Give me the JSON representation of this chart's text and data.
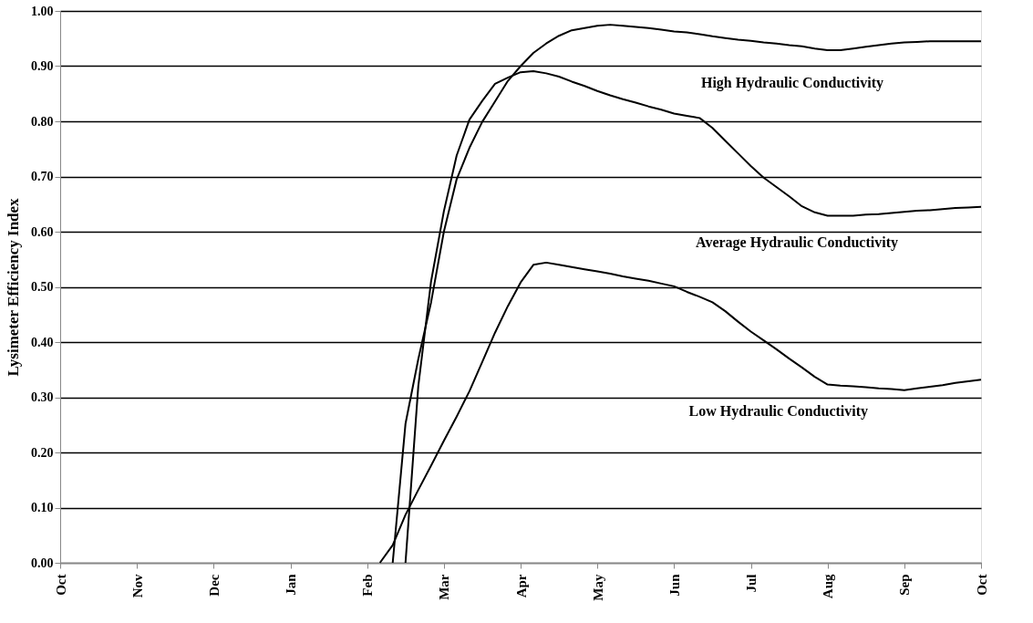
{
  "chart_data": {
    "type": "line",
    "ylabel": "Lysimeter Efficiency Index",
    "categories": [
      "Oct",
      null,
      null,
      null,
      null,
      null,
      "Nov",
      null,
      null,
      null,
      null,
      null,
      "Dec",
      null,
      null,
      null,
      null,
      null,
      "Jan",
      null,
      null,
      null,
      null,
      null,
      "Feb",
      null,
      null,
      null,
      null,
      null,
      "Mar",
      null,
      null,
      null,
      null,
      null,
      "Apr",
      null,
      null,
      null,
      null,
      null,
      "May",
      null,
      null,
      null,
      null,
      null,
      "Jun",
      null,
      null,
      null,
      null,
      null,
      "Jul",
      null,
      null,
      null,
      null,
      null,
      "Aug",
      null,
      null,
      null,
      null,
      null,
      "Sep",
      null,
      null,
      null,
      null,
      null,
      "Oct"
    ],
    "ylim": [
      0,
      1
    ],
    "yticks": [
      {
        "value": 0,
        "label": "0.00"
      },
      {
        "value": 0.1,
        "label": "0.10"
      },
      {
        "value": 0.2,
        "label": "0.20"
      },
      {
        "value": 0.3,
        "label": "0.30"
      },
      {
        "value": 0.4,
        "label": "0.40"
      },
      {
        "value": 0.5,
        "label": "0.50"
      },
      {
        "value": 0.6,
        "label": "0.60"
      },
      {
        "value": 0.7,
        "label": "0.70"
      },
      {
        "value": 0.8,
        "label": "0.80"
      },
      {
        "value": 0.9,
        "label": "0.90"
      },
      {
        "value": 1,
        "label": "1.00"
      }
    ],
    "grid": "y",
    "legend": false,
    "marker": "none",
    "line_style": "solid",
    "series": [
      {
        "name": "High Hydraulic Conductivity",
        "color": "#000000",
        "values": [
          null,
          null,
          null,
          null,
          null,
          null,
          null,
          null,
          null,
          null,
          null,
          null,
          null,
          null,
          null,
          null,
          null,
          null,
          null,
          null,
          null,
          null,
          null,
          null,
          null,
          null,
          0,
          0.252,
          0.369,
          0.472,
          0.6,
          0.695,
          0.752,
          0.799,
          0.836,
          0.873,
          0.9,
          0.924,
          0.941,
          0.955,
          0.965,
          0.969,
          0.973,
          0.975,
          0.973,
          0.971,
          0.969,
          0.966,
          0.963,
          0.961,
          0.958,
          0.954,
          0.951,
          0.948,
          0.946,
          0.943,
          0.941,
          0.938,
          0.936,
          0.932,
          0.929,
          0.929,
          0.932,
          0.935,
          0.938,
          0.941,
          0.943,
          0.944,
          0.945,
          0.945,
          0.945,
          0.945,
          0.945
        ]
      },
      {
        "name": "Average Hydraulic Conductivity",
        "color": "#000000",
        "values": [
          null,
          null,
          null,
          null,
          null,
          null,
          null,
          null,
          null,
          null,
          null,
          null,
          null,
          null,
          null,
          null,
          null,
          null,
          null,
          null,
          null,
          null,
          null,
          null,
          null,
          null,
          null,
          0,
          0.32,
          0.51,
          0.637,
          0.738,
          0.803,
          0.837,
          0.868,
          0.879,
          0.889,
          0.891,
          0.887,
          0.881,
          0.872,
          0.864,
          0.855,
          0.847,
          0.84,
          0.834,
          0.827,
          0.821,
          0.814,
          0.81,
          0.806,
          0.788,
          0.765,
          0.742,
          0.719,
          0.698,
          0.681,
          0.664,
          0.646,
          0.635,
          0.629,
          0.629,
          0.629,
          0.631,
          0.632,
          0.634,
          0.636,
          0.638,
          0.639,
          0.641,
          0.643,
          0.644,
          0.645
        ]
      },
      {
        "name": "Low Hydraulic Conductivity",
        "color": "#000000",
        "values": [
          null,
          null,
          null,
          null,
          null,
          null,
          null,
          null,
          null,
          null,
          null,
          null,
          null,
          null,
          null,
          null,
          null,
          null,
          null,
          null,
          null,
          null,
          null,
          null,
          null,
          0,
          0.032,
          0.087,
          0.132,
          0.176,
          0.221,
          0.265,
          0.311,
          0.364,
          0.417,
          0.465,
          0.508,
          0.54,
          0.544,
          0.54,
          0.536,
          0.532,
          0.528,
          0.524,
          0.519,
          0.515,
          0.511,
          0.506,
          0.501,
          0.491,
          0.482,
          0.472,
          0.456,
          0.437,
          0.419,
          0.403,
          0.387,
          0.37,
          0.354,
          0.337,
          0.323,
          0.321,
          0.32,
          0.318,
          0.316,
          0.315,
          0.313,
          0.316,
          0.319,
          0.322,
          0.326,
          0.329,
          0.332
        ]
      }
    ]
  }
}
